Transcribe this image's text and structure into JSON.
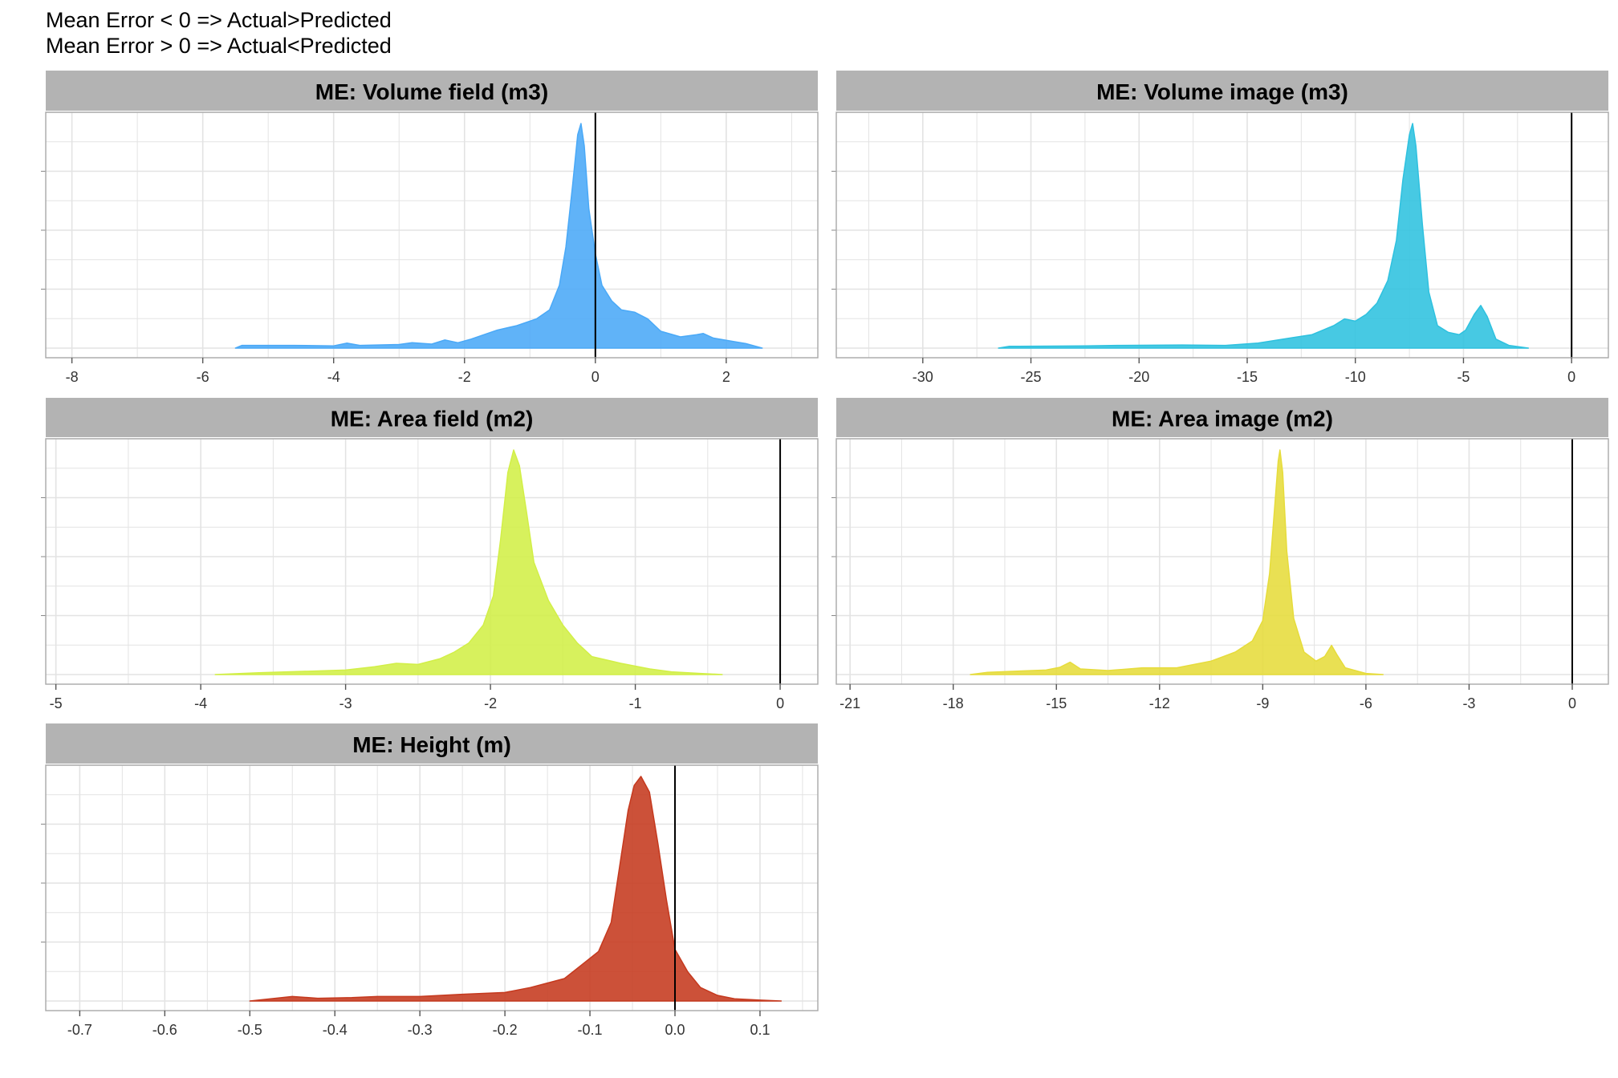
{
  "caption": {
    "line1": "Mean Error < 0 => Actual>Predicted",
    "line2": "Mean Error > 0 => Actual<Predicted"
  },
  "colors": {
    "strip_bg": "#b3b3b3",
    "grid": "#e3e3e3",
    "panel_border": "#a8a8a8",
    "zero_line": "#000000"
  },
  "chart_data": [
    {
      "type": "area",
      "title": "ME: Volume field (m3)",
      "color": "#4aa9f7",
      "xlim": [
        -8.4,
        3.4
      ],
      "xticks": [
        -8,
        -6,
        -4,
        -2,
        0,
        2
      ],
      "xtick_labels": [
        "-8",
        "-6",
        "-4",
        "-2",
        "0",
        "2"
      ],
      "reference_line_x": 0,
      "density": [
        [
          -5.5,
          0.0
        ],
        [
          -5.4,
          0.012
        ],
        [
          -4.6,
          0.012
        ],
        [
          -4.0,
          0.01
        ],
        [
          -3.8,
          0.022
        ],
        [
          -3.6,
          0.012
        ],
        [
          -3.0,
          0.016
        ],
        [
          -2.8,
          0.024
        ],
        [
          -2.5,
          0.018
        ],
        [
          -2.3,
          0.036
        ],
        [
          -2.1,
          0.024
        ],
        [
          -1.9,
          0.04
        ],
        [
          -1.5,
          0.08
        ],
        [
          -1.2,
          0.1
        ],
        [
          -0.9,
          0.13
        ],
        [
          -0.7,
          0.17
        ],
        [
          -0.55,
          0.28
        ],
        [
          -0.45,
          0.45
        ],
        [
          -0.35,
          0.72
        ],
        [
          -0.27,
          0.95
        ],
        [
          -0.22,
          1.0
        ],
        [
          -0.17,
          0.9
        ],
        [
          -0.1,
          0.62
        ],
        [
          0.0,
          0.42
        ],
        [
          0.1,
          0.28
        ],
        [
          0.25,
          0.21
        ],
        [
          0.4,
          0.17
        ],
        [
          0.6,
          0.16
        ],
        [
          0.8,
          0.13
        ],
        [
          1.0,
          0.075
        ],
        [
          1.3,
          0.05
        ],
        [
          1.55,
          0.06
        ],
        [
          1.65,
          0.065
        ],
        [
          1.8,
          0.045
        ],
        [
          2.1,
          0.03
        ],
        [
          2.3,
          0.02
        ],
        [
          2.55,
          0.0
        ]
      ]
    },
    {
      "type": "area",
      "title": "ME: Volume image (m3)",
      "color": "#2ec1df",
      "xlim": [
        -34.0,
        1.7
      ],
      "xticks": [
        -30,
        -25,
        -20,
        -15,
        -10,
        -5,
        0
      ],
      "xtick_labels": [
        "-30",
        "-25",
        "-20",
        "-15",
        "-10",
        "-5",
        "0"
      ],
      "reference_line_x": 0,
      "density": [
        [
          -26.5,
          0.0
        ],
        [
          -26.0,
          0.008
        ],
        [
          -22.5,
          0.01
        ],
        [
          -21.0,
          0.012
        ],
        [
          -18.0,
          0.014
        ],
        [
          -16.0,
          0.012
        ],
        [
          -14.5,
          0.022
        ],
        [
          -13.0,
          0.045
        ],
        [
          -12.0,
          0.06
        ],
        [
          -11.0,
          0.1
        ],
        [
          -10.5,
          0.13
        ],
        [
          -10.0,
          0.12
        ],
        [
          -9.5,
          0.15
        ],
        [
          -9.0,
          0.2
        ],
        [
          -8.5,
          0.3
        ],
        [
          -8.1,
          0.48
        ],
        [
          -7.8,
          0.75
        ],
        [
          -7.5,
          0.95
        ],
        [
          -7.35,
          1.0
        ],
        [
          -7.2,
          0.9
        ],
        [
          -6.9,
          0.55
        ],
        [
          -6.6,
          0.25
        ],
        [
          -6.2,
          0.1
        ],
        [
          -5.7,
          0.07
        ],
        [
          -5.2,
          0.06
        ],
        [
          -4.9,
          0.08
        ],
        [
          -4.5,
          0.15
        ],
        [
          -4.2,
          0.19
        ],
        [
          -3.9,
          0.14
        ],
        [
          -3.5,
          0.04
        ],
        [
          -2.9,
          0.012
        ],
        [
          -2.0,
          0.0
        ]
      ]
    },
    {
      "type": "area",
      "title": "ME: Area field (m2)",
      "color": "#d2ef47",
      "xlim": [
        -5.07,
        0.26
      ],
      "xticks": [
        -5,
        -4,
        -3,
        -2,
        -1,
        0
      ],
      "xtick_labels": [
        "-5",
        "-4",
        "-3",
        "-2",
        "-1",
        "0"
      ],
      "reference_line_x": 0,
      "density": [
        [
          -3.9,
          0.0
        ],
        [
          -3.6,
          0.008
        ],
        [
          -3.0,
          0.02
        ],
        [
          -2.8,
          0.035
        ],
        [
          -2.65,
          0.05
        ],
        [
          -2.5,
          0.045
        ],
        [
          -2.35,
          0.07
        ],
        [
          -2.25,
          0.1
        ],
        [
          -2.15,
          0.14
        ],
        [
          -2.05,
          0.22
        ],
        [
          -1.98,
          0.35
        ],
        [
          -1.93,
          0.6
        ],
        [
          -1.88,
          0.9
        ],
        [
          -1.84,
          1.0
        ],
        [
          -1.8,
          0.93
        ],
        [
          -1.75,
          0.72
        ],
        [
          -1.7,
          0.5
        ],
        [
          -1.6,
          0.33
        ],
        [
          -1.5,
          0.22
        ],
        [
          -1.4,
          0.14
        ],
        [
          -1.3,
          0.08
        ],
        [
          -1.1,
          0.05
        ],
        [
          -0.9,
          0.025
        ],
        [
          -0.75,
          0.012
        ],
        [
          -0.55,
          0.005
        ],
        [
          -0.4,
          0.0
        ]
      ]
    },
    {
      "type": "area",
      "title": "ME: Area image (m2)",
      "color": "#e6dc3b",
      "xlim": [
        -21.4,
        1.05
      ],
      "xticks": [
        -21,
        -18,
        -15,
        -12,
        -9,
        -6,
        -3,
        0
      ],
      "xtick_labels": [
        "-21",
        "-18",
        "-15",
        "-12",
        "-9",
        "-6",
        "-3",
        "0"
      ],
      "reference_line_x": 0,
      "density": [
        [
          -17.5,
          0.0
        ],
        [
          -17.0,
          0.01
        ],
        [
          -15.3,
          0.02
        ],
        [
          -14.9,
          0.032
        ],
        [
          -14.6,
          0.055
        ],
        [
          -14.3,
          0.025
        ],
        [
          -13.5,
          0.018
        ],
        [
          -12.5,
          0.03
        ],
        [
          -11.5,
          0.03
        ],
        [
          -10.5,
          0.06
        ],
        [
          -9.8,
          0.1
        ],
        [
          -9.3,
          0.15
        ],
        [
          -9.0,
          0.24
        ],
        [
          -8.8,
          0.45
        ],
        [
          -8.65,
          0.75
        ],
        [
          -8.55,
          0.95
        ],
        [
          -8.5,
          1.0
        ],
        [
          -8.42,
          0.9
        ],
        [
          -8.3,
          0.55
        ],
        [
          -8.1,
          0.25
        ],
        [
          -7.8,
          0.1
        ],
        [
          -7.45,
          0.06
        ],
        [
          -7.2,
          0.08
        ],
        [
          -7.0,
          0.13
        ],
        [
          -6.85,
          0.09
        ],
        [
          -6.6,
          0.03
        ],
        [
          -6.0,
          0.005
        ],
        [
          -5.5,
          0.0
        ]
      ]
    },
    {
      "type": "area",
      "title": "ME: Height (m)",
      "color": "#c5391e",
      "xlim": [
        -0.74,
        0.168
      ],
      "xticks": [
        -0.7,
        -0.6,
        -0.5,
        -0.4,
        -0.3,
        -0.2,
        -0.1,
        0.0,
        0.1
      ],
      "xtick_labels": [
        "-0.7",
        "-0.6",
        "-0.5",
        "-0.4",
        "-0.3",
        "-0.2",
        "-0.1",
        "0.0",
        "0.1"
      ],
      "reference_line_x": 0,
      "density": [
        [
          -0.5,
          0.0
        ],
        [
          -0.47,
          0.012
        ],
        [
          -0.45,
          0.02
        ],
        [
          -0.42,
          0.012
        ],
        [
          -0.38,
          0.015
        ],
        [
          -0.35,
          0.02
        ],
        [
          -0.3,
          0.02
        ],
        [
          -0.25,
          0.03
        ],
        [
          -0.2,
          0.038
        ],
        [
          -0.17,
          0.06
        ],
        [
          -0.15,
          0.08
        ],
        [
          -0.13,
          0.1
        ],
        [
          -0.11,
          0.16
        ],
        [
          -0.09,
          0.22
        ],
        [
          -0.075,
          0.35
        ],
        [
          -0.065,
          0.6
        ],
        [
          -0.055,
          0.85
        ],
        [
          -0.048,
          0.96
        ],
        [
          -0.04,
          1.0
        ],
        [
          -0.03,
          0.93
        ],
        [
          -0.02,
          0.7
        ],
        [
          -0.01,
          0.45
        ],
        [
          0.0,
          0.23
        ],
        [
          0.015,
          0.13
        ],
        [
          0.03,
          0.06
        ],
        [
          0.05,
          0.025
        ],
        [
          0.07,
          0.01
        ],
        [
          0.1,
          0.004
        ],
        [
          0.125,
          0.0
        ]
      ]
    }
  ]
}
